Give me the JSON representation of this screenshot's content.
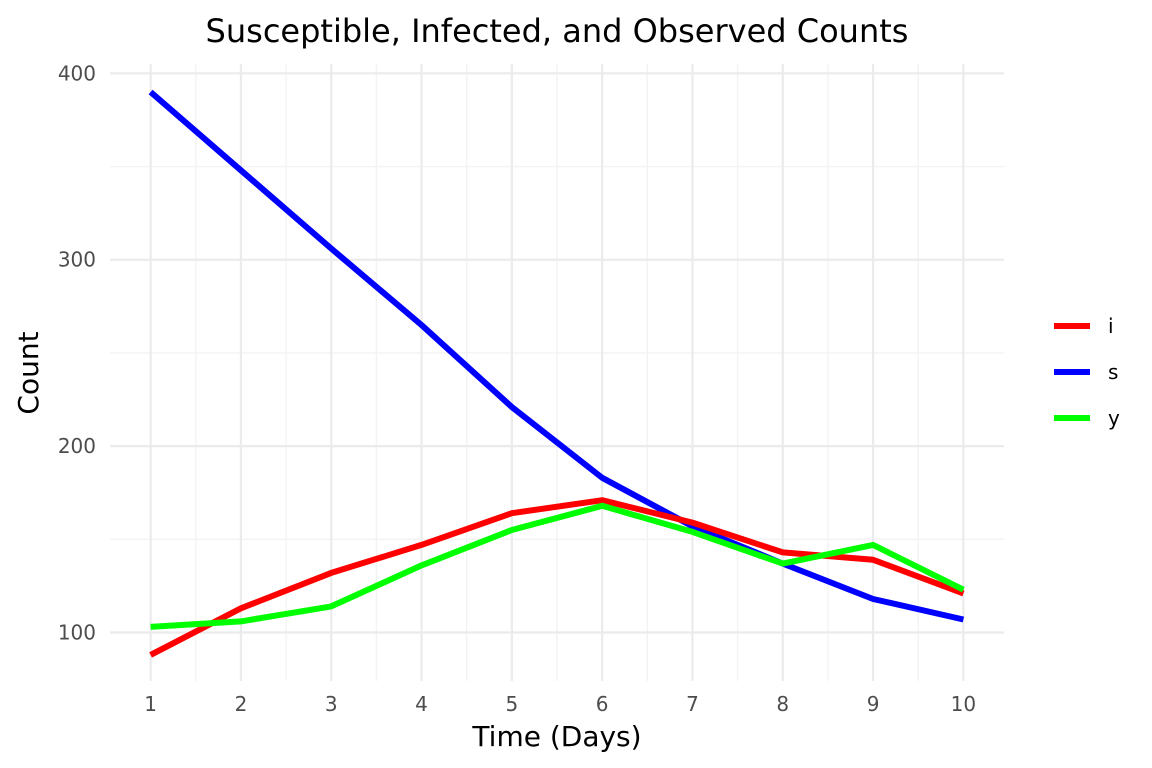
{
  "chart_data": {
    "type": "line",
    "title": "Susceptible, Infected, and Observed Counts",
    "xlabel": "Time (Days)",
    "ylabel": "Count",
    "x": [
      1,
      2,
      3,
      4,
      5,
      6,
      7,
      8,
      9,
      10
    ],
    "xticks": [
      1,
      2,
      3,
      4,
      5,
      6,
      7,
      8,
      9,
      10
    ],
    "yticks": [
      100,
      200,
      300,
      400
    ],
    "xlim": [
      0.55,
      10.45
    ],
    "ylim": [
      74,
      405
    ],
    "grid": true,
    "legend": "right",
    "series": [
      {
        "name": "i",
        "color": "#ff0000",
        "values": [
          88,
          113,
          132,
          147,
          164,
          171,
          159,
          143,
          139,
          121
        ]
      },
      {
        "name": "s",
        "color": "#0000ff",
        "values": [
          390,
          348,
          306,
          265,
          221,
          183,
          157,
          137,
          118,
          107
        ]
      },
      {
        "name": "y",
        "color": "#00ff00",
        "values": [
          103,
          106,
          114,
          136,
          155,
          168,
          154,
          137,
          147,
          123
        ]
      }
    ]
  }
}
